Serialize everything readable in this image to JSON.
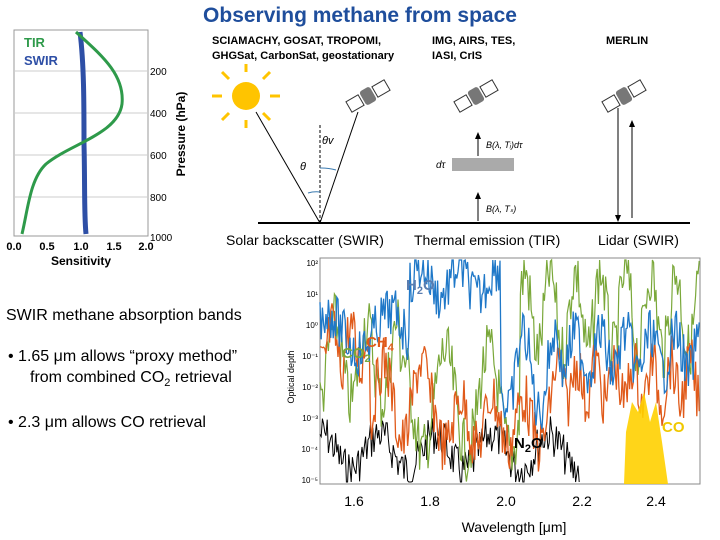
{
  "title": "Observing methane from space",
  "profile": {
    "legend": [
      "TIR",
      "SWIR"
    ],
    "colors": {
      "TIR": "#2e9a4a",
      "SWIR": "#2e4fa6"
    },
    "ylabel": "Pressure (hPa)",
    "xlabel": "Sensitivity",
    "yticks": [
      "200",
      "400",
      "600",
      "800",
      "1000"
    ],
    "xticks": [
      "0.0",
      "0.5",
      "1.0",
      "1.5",
      "2.0"
    ]
  },
  "instruments": {
    "swir": [
      "SCIAMACHY, GOSAT, TROPOMI,",
      "GHGSat, CarbonSat, geostationary"
    ],
    "tir": [
      "IMG, AIRS, TES,",
      "IASI, CrIS"
    ],
    "lidar": [
      "MERLIN"
    ]
  },
  "geometry_symbols": {
    "theta_v": "θv",
    "theta": "θ",
    "b_top": "B(λ, Tᵢ)dτ",
    "d_tau": "dτ",
    "b_bottom": "B(λ, Tₛ)"
  },
  "modes": {
    "swir": "Solar backscatter (SWIR)",
    "tir": "Thermal emission (TIR)",
    "lidar": "Lidar (SWIR)"
  },
  "bands": {
    "heading": "SWIR methane absorption bands",
    "bullet1_line1": "• 1.65 μm allows “proxy method”",
    "bullet1_line2_pre": "from combined CO",
    "bullet1_line2_sub": "2",
    "bullet1_line2_post": " retrieval",
    "bullet2": "• 2.3 μm allows CO retrieval"
  },
  "spectrum": {
    "ylabel": "Optical depth",
    "xlabel": "Wavelength [μm]",
    "xticks": [
      "1.6",
      "1.8",
      "2.0",
      "2.2",
      "2.4"
    ],
    "yticks": [
      "10²",
      "10¹",
      "10⁰",
      "10⁻¹",
      "10⁻²",
      "10⁻³",
      "10⁻⁴",
      "10⁻⁵"
    ],
    "species": {
      "h2o": {
        "label": "H",
        "sub": "2",
        "post": "O",
        "color": "#5a7db0"
      },
      "ch4": {
        "label": "CH",
        "sub": "4",
        "post": "",
        "color": "#e05a1a"
      },
      "co2": {
        "label": "CO",
        "sub": "2",
        "post": "",
        "color": "#7aa83a"
      },
      "n2o": {
        "label": "N",
        "sub": "2",
        "post": "O",
        "color": "#000000"
      },
      "co": {
        "label": "CO",
        "sub": "",
        "post": "",
        "color": "#f0c800"
      }
    },
    "colors": {
      "h2o": "#1f78c8",
      "ch4": "#e05a1a",
      "co2": "#7aa83a",
      "n2o": "#000000",
      "co": "#ffd000"
    }
  }
}
